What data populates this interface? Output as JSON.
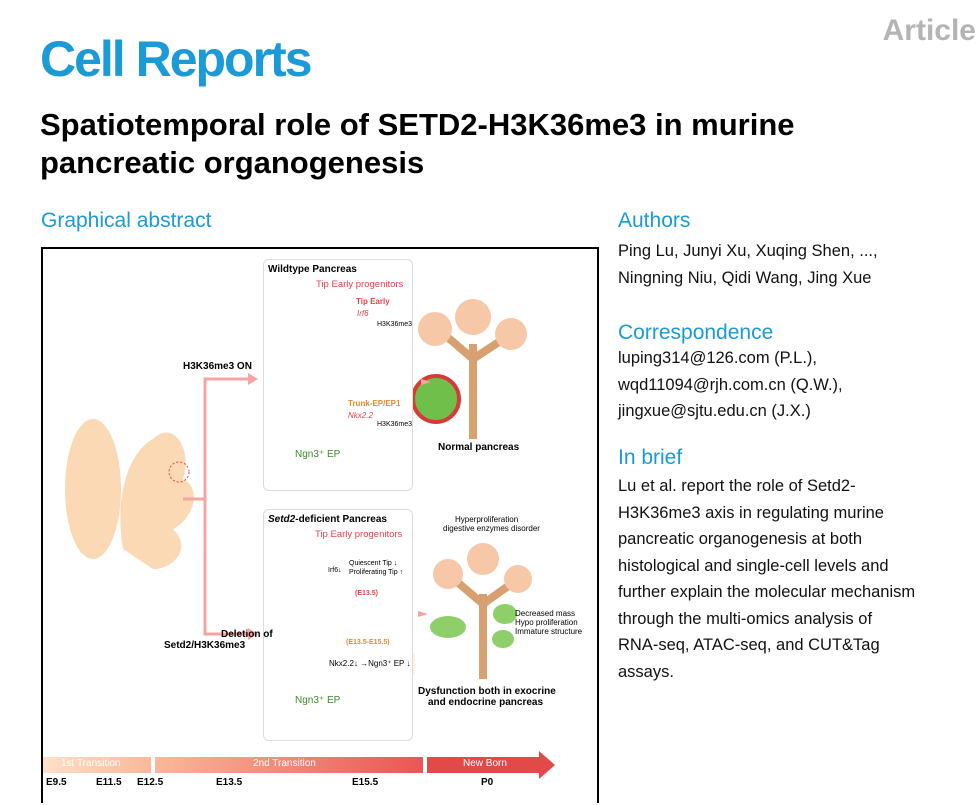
{
  "header": {
    "journal": "Cell Reports",
    "article_type": "Article",
    "title_line1": "Spatiotemporal role of SETD2-H3K36me3 in murine",
    "title_line2": "pancreatic organogenesis"
  },
  "graphical_abstract": {
    "heading": "Graphical abstract",
    "wt_title": "Wildtype Pancreas",
    "tip_early_progenitors": "Tip Early progenitors",
    "tip_early": "Tip Early",
    "irf6": "Irf6",
    "h3k36me3": "H3K36me3",
    "trunk": "Trunk-EP/EP1",
    "nkx22": "Nkx2.2",
    "ngn3_ep": "Ngn3⁺ EP",
    "normal": "Normal pancreas",
    "on": "H3K36me3 ON",
    "ko_title_italic": "Setd2",
    "ko_title_rest": "-deficient Pancreas",
    "irf6_down": "Irf6↓",
    "quiescent": "Quiescent Tip ↓",
    "proliferating": "Proliferating Tip ↑",
    "e135": "(E13.5)",
    "e135_155": "(E13.5-E15.5)",
    "nkx_line": "Nkx2.2↓ →Ngn3⁺ EP ↓",
    "hyper1": "Hyperproliferation",
    "hyper2": "digestive enzymes disorder",
    "dec1": "Decreased mass",
    "dec2": "Hypo proliferation",
    "dec3": "Immature structure",
    "dys1": "Dysfunction both in exocrine",
    "dys2": "and endocrine pancreas",
    "del1": "Deletion of",
    "del2": "Setd2/H3K36me3",
    "timeline": {
      "first": "1st Transition",
      "second": "2nd Transition",
      "newborn": "New Born",
      "ticks": [
        "E9.5",
        "E11.5",
        "E12.5",
        "E13.5",
        "E15.5",
        "P0"
      ]
    }
  },
  "authors": {
    "heading": "Authors",
    "line1": "Ping Lu, Junyi Xu, Xuqing Shen, ...,",
    "line2": "Ningning Niu, Qidi Wang, Jing Xue"
  },
  "correspondence": {
    "heading": "Correspondence",
    "emails": [
      "luping314@126.com (P.L.),",
      "wqd11094@rjh.com.cn (Q.W.),",
      "jingxue@sjtu.edu.cn (J.X.)"
    ]
  },
  "in_brief": {
    "heading": "In brief",
    "lines": [
      "Lu et al. report the role of Setd2-",
      "H3K36me3 axis in regulating murine",
      "pancreatic organogenesis at both",
      "histological and single-cell levels and",
      "further explain the molecular mechanism",
      "through the multi-omics analysis of",
      "RNA-seq, ATAC-seq, and CUT&Tag",
      "assays."
    ]
  }
}
